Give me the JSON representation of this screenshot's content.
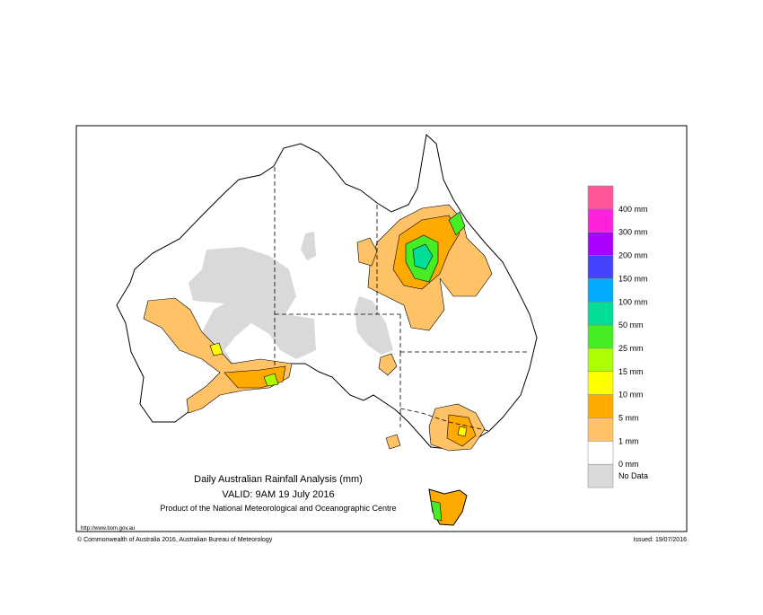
{
  "map": {
    "title": "Daily Australian Rainfall Analysis (mm)",
    "valid": "VALID: 9AM 19 July 2016",
    "product": "Product of the National Meteorological and Oceanographic Centre",
    "url": "http://www.bom.gov.au",
    "copyright": "© Commonwealth of Australia 2016, Australian Bureau of Meteorology",
    "issued": "Issued: 19/07/2016",
    "legend": [
      {
        "label": "400 mm",
        "color": "#ff5599"
      },
      {
        "label": "300 mm",
        "color": "#ff22dd"
      },
      {
        "label": "200 mm",
        "color": "#aa00ff"
      },
      {
        "label": "150 mm",
        "color": "#4444ff"
      },
      {
        "label": "100 mm",
        "color": "#00aaff"
      },
      {
        "label": "50 mm",
        "color": "#00dd99"
      },
      {
        "label": "25 mm",
        "color": "#44ee22"
      },
      {
        "label": "15 mm",
        "color": "#aaff00"
      },
      {
        "label": "10 mm",
        "color": "#ffff00"
      },
      {
        "label": "5 mm",
        "color": "#ffaa00"
      },
      {
        "label": "1 mm",
        "color": "#ffc266"
      },
      {
        "label": "0 mm",
        "color": "#ffffff"
      },
      {
        "label": "No Data",
        "color": "#d9d9d9"
      }
    ]
  }
}
